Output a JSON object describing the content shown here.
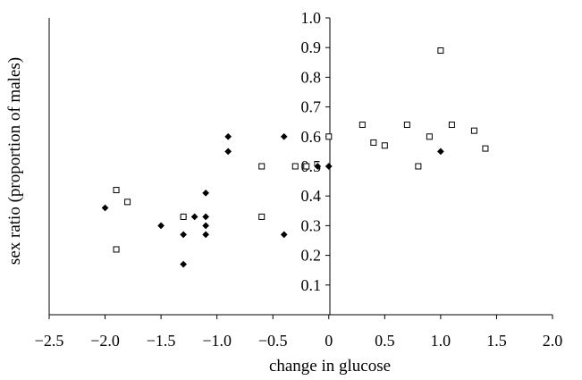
{
  "chart_data": {
    "type": "scatter",
    "title": "",
    "xlabel": "change in glucose",
    "ylabel": "sex ratio (proportion of males)",
    "xlim": [
      -2.5,
      2.0
    ],
    "ylim": [
      0,
      1.0
    ],
    "x_ticks": [
      "-2.5",
      "-2.0",
      "-1.5",
      "-1.0",
      "-0.5",
      "0",
      "0.5",
      "1.0",
      "1.5",
      "2.0"
    ],
    "y_ticks": [
      "0.1",
      "0.2",
      "0.3",
      "0.4",
      "0.5",
      "0.6",
      "0.7",
      "0.8",
      "0.9",
      "1.0"
    ],
    "grid": false,
    "legend": null,
    "series": [
      {
        "marker": "filled-diamond",
        "color": "#000000",
        "points": [
          {
            "x": -2.0,
            "y": 0.36
          },
          {
            "x": -1.5,
            "y": 0.3
          },
          {
            "x": -1.3,
            "y": 0.33
          },
          {
            "x": -1.3,
            "y": 0.27
          },
          {
            "x": -1.3,
            "y": 0.17
          },
          {
            "x": -1.2,
            "y": 0.33
          },
          {
            "x": -1.1,
            "y": 0.41
          },
          {
            "x": -1.1,
            "y": 0.33
          },
          {
            "x": -1.1,
            "y": 0.3
          },
          {
            "x": -1.1,
            "y": 0.27
          },
          {
            "x": -0.9,
            "y": 0.6
          },
          {
            "x": -0.9,
            "y": 0.55
          },
          {
            "x": -0.4,
            "y": 0.6
          },
          {
            "x": -0.4,
            "y": 0.27
          },
          {
            "x": -0.1,
            "y": 0.5
          },
          {
            "x": 0.0,
            "y": 0.5
          },
          {
            "x": 1.0,
            "y": 0.55
          }
        ]
      },
      {
        "marker": "open-square",
        "color": "#000000",
        "points": [
          {
            "x": -1.9,
            "y": 0.42
          },
          {
            "x": -1.9,
            "y": 0.22
          },
          {
            "x": -1.8,
            "y": 0.38
          },
          {
            "x": -1.3,
            "y": 0.33
          },
          {
            "x": -0.6,
            "y": 0.5
          },
          {
            "x": -0.6,
            "y": 0.33
          },
          {
            "x": -0.3,
            "y": 0.5
          },
          {
            "x": -0.2,
            "y": 0.5
          },
          {
            "x": 0.0,
            "y": 0.6
          },
          {
            "x": 0.3,
            "y": 0.64
          },
          {
            "x": 0.4,
            "y": 0.58
          },
          {
            "x": 0.5,
            "y": 0.57
          },
          {
            "x": 0.7,
            "y": 0.64
          },
          {
            "x": 0.8,
            "y": 0.5
          },
          {
            "x": 0.9,
            "y": 0.6
          },
          {
            "x": 1.0,
            "y": 0.89
          },
          {
            "x": 1.1,
            "y": 0.64
          },
          {
            "x": 1.3,
            "y": 0.62
          },
          {
            "x": 1.4,
            "y": 0.56
          }
        ]
      }
    ]
  }
}
